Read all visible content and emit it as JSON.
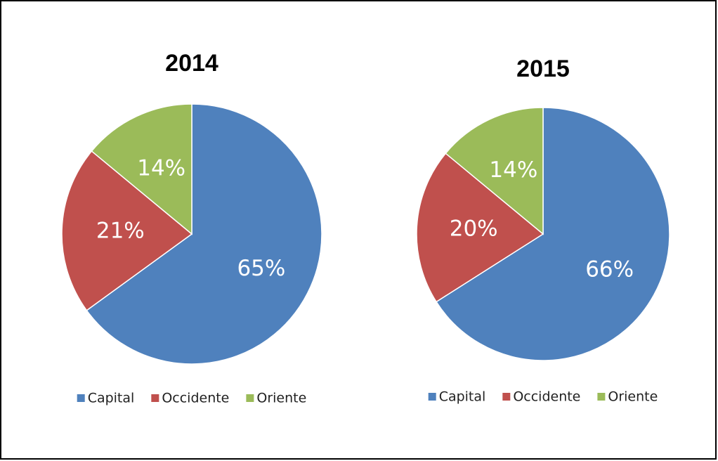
{
  "chart_data": [
    {
      "type": "pie",
      "title": "2014",
      "categories": [
        "Capital",
        "Occidente",
        "Oriente"
      ],
      "values": [
        65,
        21,
        14
      ],
      "value_labels": [
        "65%",
        "21%",
        "14%"
      ],
      "colors": [
        "#4f81bd",
        "#c0504d",
        "#9bbb59"
      ],
      "legend": "bottom"
    },
    {
      "type": "pie",
      "title": "2015",
      "categories": [
        "Capital",
        "Occidente",
        "Oriente"
      ],
      "values": [
        66,
        20,
        14
      ],
      "value_labels": [
        "66%",
        "20%",
        "14%"
      ],
      "colors": [
        "#4f81bd",
        "#c0504d",
        "#9bbb59"
      ],
      "legend": "bottom"
    }
  ]
}
